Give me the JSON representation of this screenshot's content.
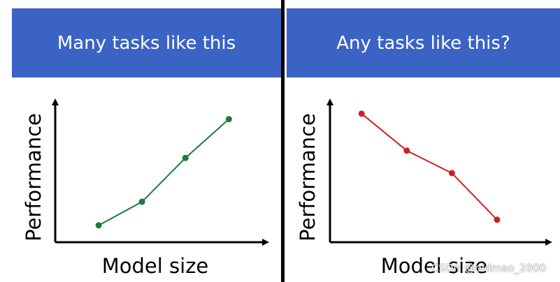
{
  "colors": {
    "banner": "#3a63c4",
    "banner_text": "#ffffff",
    "divider": "#000000",
    "axis": "#000000"
  },
  "watermark": "CSDN @oldmao_2000",
  "chart_data": [
    {
      "type": "line",
      "title": "Many tasks like this",
      "xlabel": "Model size",
      "ylabel": "Performance",
      "x": [
        1,
        2,
        3,
        4
      ],
      "series": [
        {
          "values": [
            1.0,
            2.4,
            5.0,
            7.3
          ],
          "color": "#1e7a3c"
        }
      ],
      "xlim": [
        0,
        4.8
      ],
      "ylim": [
        0,
        8.2
      ],
      "grid": false,
      "axis_ticks": false
    },
    {
      "type": "line",
      "title": "Any tasks like this?",
      "xlabel": "Model size",
      "ylabel": "Performance",
      "x": [
        1,
        2,
        3,
        4
      ],
      "series": [
        {
          "values": [
            8.0,
            5.7,
            4.3,
            1.4
          ],
          "color": "#cc2222"
        }
      ],
      "xlim": [
        0.3,
        5.1
      ],
      "ylim": [
        0,
        8.6
      ],
      "grid": false,
      "axis_ticks": false
    }
  ]
}
